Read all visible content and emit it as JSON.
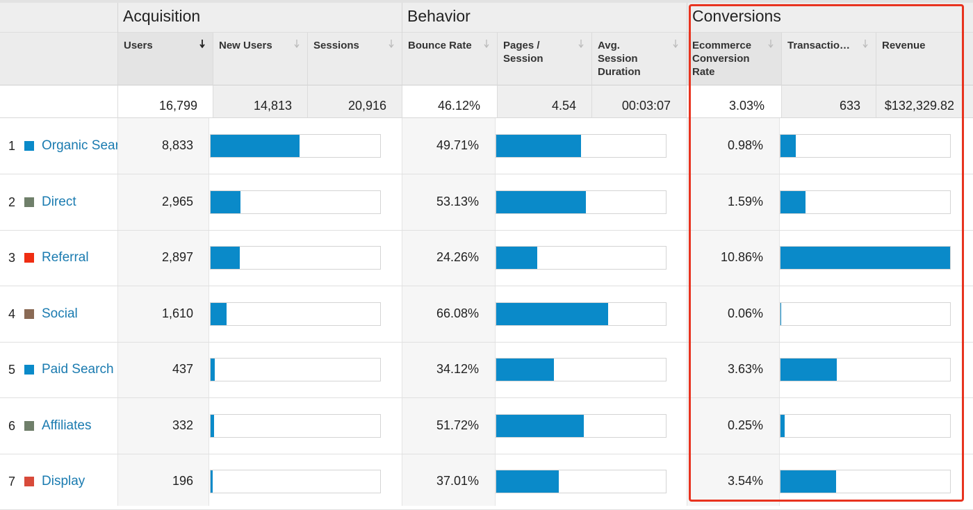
{
  "groups": {
    "acquisition": "Acquisition",
    "behavior": "Behavior",
    "conversions": "Conversions"
  },
  "columns": {
    "users": "Users",
    "new_users": "New Users",
    "sessions": "Sessions",
    "bounce_rate": "Bounce Rate",
    "pages_session_1": "Pages /",
    "pages_session_2": "Session",
    "avg_dur_1": "Avg.",
    "avg_dur_2": "Session",
    "avg_dur_3": "Duration",
    "ecr_1": "Ecommerce",
    "ecr_2": "Conversion",
    "ecr_3": "Rate",
    "transactions": "Transactio…",
    "revenue": "Revenue"
  },
  "totals": {
    "users": "16,799",
    "new_users": "14,813",
    "sessions": "20,916",
    "bounce_rate": "46.12%",
    "pages_session": "4.54",
    "avg_duration": "00:03:07",
    "ecr": "3.03%",
    "transactions": "633",
    "revenue": "$132,329.82"
  },
  "rows": [
    {
      "rank": "1",
      "channel": "Organic Search",
      "users": "8,833",
      "users_share": 0.526,
      "bounce_rate": "49.71%",
      "bounce_bar": 0.5,
      "ecr": "0.98%",
      "ecr_bar": 0.09,
      "color": "#0a8ac9"
    },
    {
      "rank": "2",
      "channel": "Direct",
      "users": "2,965",
      "users_share": 0.176,
      "bounce_rate": "53.13%",
      "bounce_bar": 0.53,
      "ecr": "1.59%",
      "ecr_bar": 0.146,
      "color": "#6f7f6a"
    },
    {
      "rank": "3",
      "channel": "Referral",
      "users": "2,897",
      "users_share": 0.172,
      "bounce_rate": "24.26%",
      "bounce_bar": 0.243,
      "ecr": "10.86%",
      "ecr_bar": 1.0,
      "color": "#ef2d12"
    },
    {
      "rank": "4",
      "channel": "Social",
      "users": "1,610",
      "users_share": 0.096,
      "bounce_rate": "66.08%",
      "bounce_bar": 0.661,
      "ecr": "0.06%",
      "ecr_bar": 0.006,
      "color": "#8a6a55"
    },
    {
      "rank": "5",
      "channel": "Paid Search",
      "users": "437",
      "users_share": 0.026,
      "bounce_rate": "34.12%",
      "bounce_bar": 0.341,
      "ecr": "3.63%",
      "ecr_bar": 0.334,
      "color": "#0a8ac9"
    },
    {
      "rank": "6",
      "channel": "Affiliates",
      "users": "332",
      "users_share": 0.02,
      "bounce_rate": "51.72%",
      "bounce_bar": 0.517,
      "ecr": "0.25%",
      "ecr_bar": 0.023,
      "color": "#6f7f6a"
    },
    {
      "rank": "7",
      "channel": "Display",
      "users": "196",
      "users_share": 0.012,
      "bounce_rate": "37.01%",
      "bounce_bar": 0.37,
      "ecr": "3.54%",
      "ecr_bar": 0.326,
      "color": "#d84a3a"
    }
  ],
  "colors": {
    "bar": "#0a8ac9",
    "link": "#1a7bb0",
    "highlight": "#e8331f"
  },
  "icons": {
    "sort_active": "arrow-down-bold-icon",
    "sort_inactive": "arrow-down-light-icon"
  }
}
